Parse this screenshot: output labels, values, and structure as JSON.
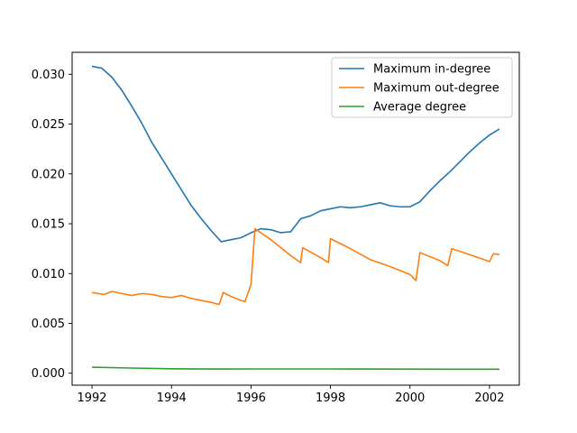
{
  "chart_data": {
    "type": "line",
    "title": "",
    "xlabel": "",
    "ylabel": "",
    "xlim": [
      1991.5,
      2002.75
    ],
    "ylim": [
      -0.0012,
      0.0322
    ],
    "xticks": [
      1992,
      1994,
      1996,
      1998,
      2000,
      2002
    ],
    "xtick_labels": [
      "1992",
      "1994",
      "1996",
      "1998",
      "2000",
      "2002"
    ],
    "yticks": [
      0.0,
      0.005,
      0.01,
      0.015,
      0.02,
      0.025,
      0.03
    ],
    "ytick_labels": [
      "0.000",
      "0.005",
      "0.010",
      "0.015",
      "0.020",
      "0.025",
      "0.030"
    ],
    "grid": false,
    "legend_position": "top-right",
    "series": [
      {
        "name": "Maximum in-degree",
        "color": "#1f77b4",
        "x": [
          1992.0,
          1992.25,
          1992.5,
          1992.75,
          1993.0,
          1993.25,
          1993.5,
          1993.75,
          1994.0,
          1994.25,
          1994.5,
          1994.75,
          1995.0,
          1995.25,
          1995.5,
          1995.75,
          1996.0,
          1996.25,
          1996.5,
          1996.75,
          1997.0,
          1997.25,
          1997.5,
          1997.75,
          1998.0,
          1998.25,
          1998.5,
          1998.75,
          1999.0,
          1999.25,
          1999.5,
          1999.75,
          2000.0,
          2000.25,
          2000.5,
          2000.75,
          2001.0,
          2001.25,
          2001.5,
          2001.75,
          2002.0,
          2002.25
        ],
        "y": [
          0.0308,
          0.0306,
          0.0297,
          0.0284,
          0.0268,
          0.0251,
          0.0232,
          0.0216,
          0.02,
          0.0184,
          0.0168,
          0.0155,
          0.0143,
          0.0132,
          0.0134,
          0.0136,
          0.0141,
          0.0145,
          0.0144,
          0.0141,
          0.0142,
          0.0155,
          0.0158,
          0.0163,
          0.0165,
          0.0167,
          0.0166,
          0.0167,
          0.0169,
          0.0171,
          0.0168,
          0.0167,
          0.0167,
          0.0172,
          0.0183,
          0.0193,
          0.0202,
          0.0212,
          0.0222,
          0.0231,
          0.0239,
          0.0245
        ]
      },
      {
        "name": "Maximum out-degree",
        "color": "#ff7f0e",
        "x": [
          1992.0,
          1992.3,
          1992.5,
          1992.75,
          1993.0,
          1993.25,
          1993.5,
          1993.75,
          1994.0,
          1994.25,
          1994.5,
          1994.75,
          1995.0,
          1995.2,
          1995.3,
          1995.5,
          1995.75,
          1995.85,
          1996.0,
          1996.1,
          1996.5,
          1997.0,
          1997.25,
          1997.3,
          1997.75,
          1997.95,
          1998.0,
          1998.5,
          1999.0,
          1999.5,
          2000.0,
          2000.15,
          2000.25,
          2000.75,
          2000.95,
          2001.05,
          2001.5,
          2002.0,
          2002.1,
          2002.25
        ],
        "y": [
          0.0081,
          0.0079,
          0.0082,
          0.008,
          0.0078,
          0.008,
          0.0079,
          0.0077,
          0.0076,
          0.0078,
          0.0075,
          0.0073,
          0.0071,
          0.0069,
          0.0081,
          0.0077,
          0.0073,
          0.0072,
          0.0089,
          0.0145,
          0.0134,
          0.0118,
          0.0111,
          0.0126,
          0.0116,
          0.0111,
          0.0135,
          0.0125,
          0.0114,
          0.0107,
          0.0099,
          0.0093,
          0.0121,
          0.0113,
          0.0108,
          0.0125,
          0.0119,
          0.0112,
          0.012,
          0.0119
        ]
      },
      {
        "name": "Average degree",
        "color": "#2ca02c",
        "x": [
          1992.0,
          1993.0,
          1994.0,
          1995.0,
          1996.0,
          1997.0,
          1998.0,
          1999.0,
          2000.0,
          2001.0,
          2002.0,
          2002.25
        ],
        "y": [
          0.0006,
          0.00052,
          0.00045,
          0.00042,
          0.00043,
          0.00043,
          0.00043,
          0.00042,
          0.00041,
          0.0004,
          0.0004,
          0.0004
        ]
      }
    ]
  }
}
